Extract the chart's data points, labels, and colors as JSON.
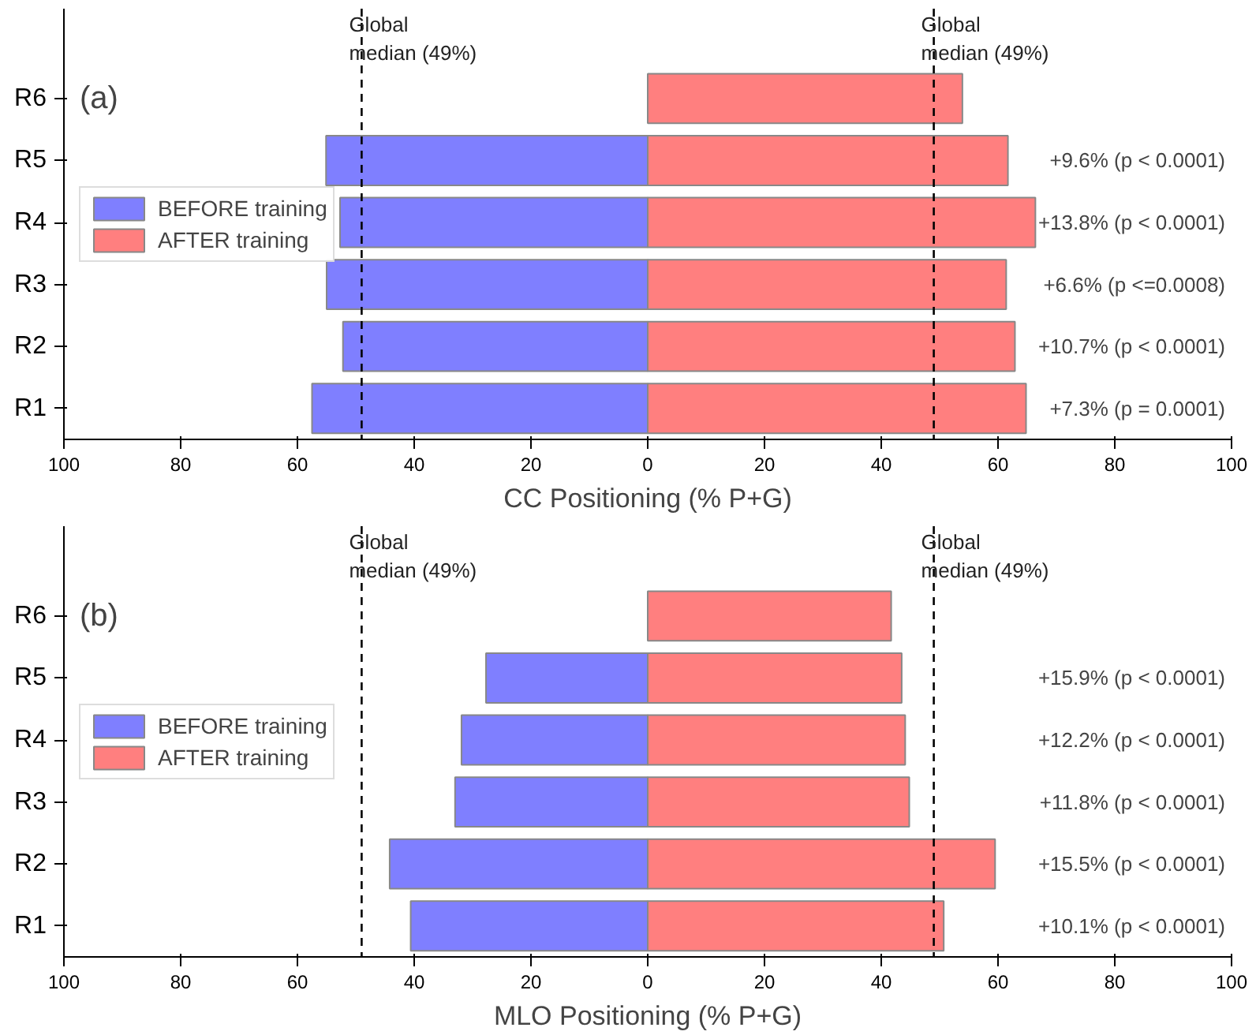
{
  "chart_data": [
    {
      "type": "bar",
      "orientation": "horizontal",
      "xlabel": "CC Positioning (% P+G)",
      "categories": [
        "R6",
        "R5",
        "R4",
        "R3",
        "R2",
        "R1"
      ],
      "series": [
        {
          "name": "BEFORE training",
          "color": "#7f7fff",
          "values": [
            null,
            -55.1,
            -52.7,
            -55.0,
            -52.2,
            -57.5
          ]
        },
        {
          "name": "AFTER training",
          "color": "#ff7f7f",
          "values": [
            53.9,
            61.7,
            66.4,
            61.4,
            62.9,
            64.8
          ]
        }
      ],
      "xlim": [
        -100,
        100
      ],
      "xticks": [
        {
          "value": -100,
          "label": "100"
        },
        {
          "value": -80,
          "label": "80"
        },
        {
          "value": -60,
          "label": "60"
        },
        {
          "value": -40,
          "label": "40"
        },
        {
          "value": -20,
          "label": "20"
        },
        0,
        20,
        40,
        60,
        80,
        100
      ],
      "ref_lines": [
        {
          "axis": "x",
          "value": -49,
          "label": "Global median (49%)",
          "line_style": "dashed",
          "color": "#000000"
        },
        {
          "axis": "x",
          "value": 49,
          "label": "Global median (49%)",
          "line_style": "dashed",
          "color": "#000000"
        }
      ],
      "annotations": [
        "(a)",
        "+9.6% (p < 0.0001)",
        "+13.8% (p < 0.0001)",
        "+6.6% (p <=0.0008)",
        "+10.7% (p < 0.0001)",
        "+7.3% (p = 0.0001)"
      ],
      "legend": "left",
      "stacked": true
    },
    {
      "type": "bar",
      "orientation": "horizontal",
      "xlabel": "MLO Positioning (% P+G)",
      "categories": [
        "R6",
        "R5",
        "R4",
        "R3",
        "R2",
        "R1"
      ],
      "series": [
        {
          "name": "BEFORE training",
          "color": "#7f7fff",
          "values": [
            null,
            -27.7,
            -31.9,
            -33.0,
            -44.2,
            -40.6
          ]
        },
        {
          "name": "AFTER training",
          "color": "#ff7f7f",
          "values": [
            41.7,
            43.5,
            44.1,
            44.8,
            59.5,
            50.7
          ]
        }
      ],
      "xlim": [
        -100,
        100
      ],
      "xticks": [
        {
          "value": -100,
          "label": "100"
        },
        {
          "value": -80,
          "label": "80"
        },
        {
          "value": -60,
          "label": "60"
        },
        {
          "value": -40,
          "label": "40"
        },
        {
          "value": -20,
          "label": "20"
        },
        0,
        20,
        40,
        60,
        80,
        100
      ],
      "ref_lines": [
        {
          "axis": "x",
          "value": -49,
          "label": "Global median (49%)",
          "line_style": "dashed",
          "color": "#000000"
        },
        {
          "axis": "x",
          "value": 49,
          "label": "Global median (49%)",
          "line_style": "dashed",
          "color": "#000000"
        }
      ],
      "annotations": [
        "(b)",
        "+15.9% (p < 0.0001)",
        "+12.2% (p < 0.0001)",
        "+11.8% (p < 0.0001)",
        "+15.5% (p < 0.0001)",
        "+10.1% (p < 0.0001)"
      ],
      "legend": "left",
      "stacked": true
    }
  ]
}
